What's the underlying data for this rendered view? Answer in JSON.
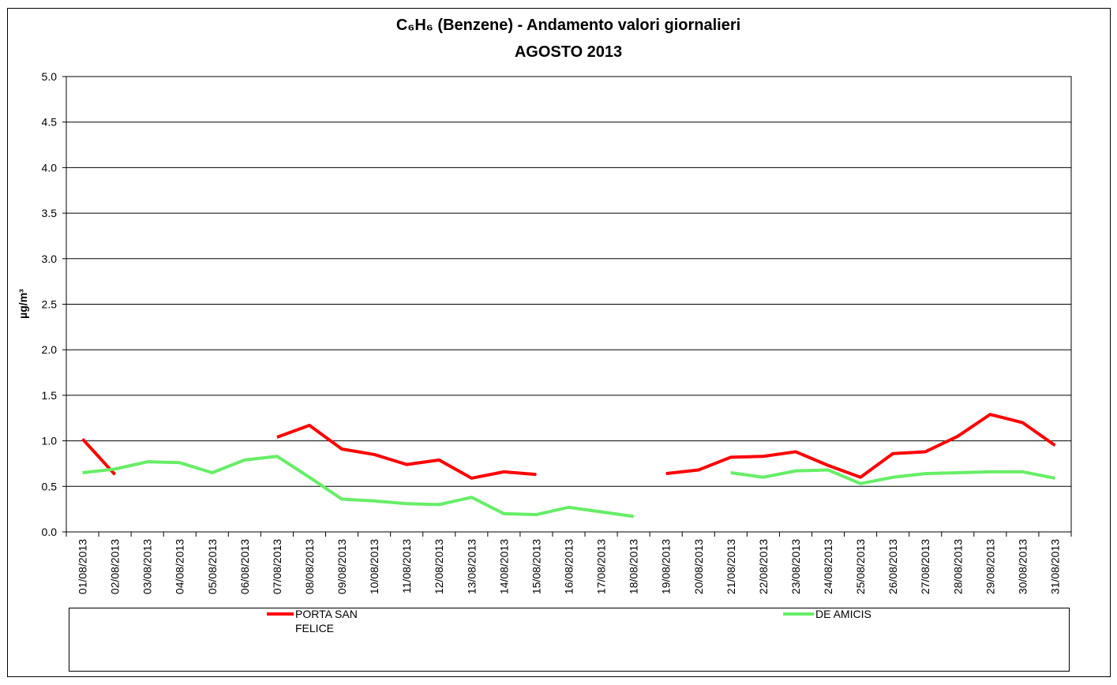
{
  "chart_data": {
    "type": "line",
    "title": "C₆H₆ (Benzene) - Andamento valori giornalieri",
    "subtitle": "AGOSTO 2013",
    "y_label": "µg/m³",
    "categories": [
      "01/08/2013",
      "02/08/2013",
      "03/08/2013",
      "04/08/2013",
      "05/08/2013",
      "06/08/2013",
      "07/08/2013",
      "08/08/2013",
      "09/08/2013",
      "10/08/2013",
      "11/08/2013",
      "12/08/2013",
      "13/08/2013",
      "14/08/2013",
      "15/08/2013",
      "16/08/2013",
      "17/08/2013",
      "18/08/2013",
      "19/08/2013",
      "20/08/2013",
      "21/08/2013",
      "22/08/2013",
      "23/08/2013",
      "24/08/2013",
      "25/08/2013",
      "26/08/2013",
      "27/08/2013",
      "28/08/2013",
      "29/08/2013",
      "30/08/2013",
      "31/08/2013"
    ],
    "series": [
      {
        "name": "PORTA SAN FELICE",
        "color": "#ff0000",
        "values": [
          1.02,
          0.63,
          null,
          null,
          null,
          null,
          1.04,
          1.17,
          0.91,
          0.85,
          0.74,
          0.79,
          0.59,
          0.66,
          0.63,
          null,
          null,
          null,
          0.64,
          0.68,
          0.82,
          0.83,
          0.88,
          0.73,
          0.6,
          0.86,
          0.88,
          1.05,
          1.29,
          1.2,
          0.95
        ]
      },
      {
        "name": "DE AMICIS",
        "color": "#66ee66",
        "values": [
          0.65,
          0.69,
          0.77,
          0.76,
          0.65,
          0.79,
          0.83,
          0.6,
          0.36,
          0.34,
          0.31,
          0.3,
          0.38,
          0.2,
          0.19,
          0.27,
          0.22,
          0.17,
          null,
          null,
          0.65,
          0.6,
          0.67,
          0.68,
          0.53,
          0.6,
          0.64,
          0.65,
          0.66,
          0.66,
          0.59
        ]
      }
    ],
    "ylim": [
      0,
      5
    ],
    "yticks": [
      {
        "value": 0,
        "label": "0.0"
      },
      0.5,
      {
        "value": 1,
        "label": "1.0"
      },
      1.5,
      {
        "value": 2,
        "label": "2.0"
      },
      2.5,
      {
        "value": 3,
        "label": "3.0"
      },
      3.5,
      {
        "value": 4,
        "label": "4.0"
      },
      4.5,
      {
        "value": 5,
        "label": "5.0"
      }
    ],
    "grid": true
  }
}
